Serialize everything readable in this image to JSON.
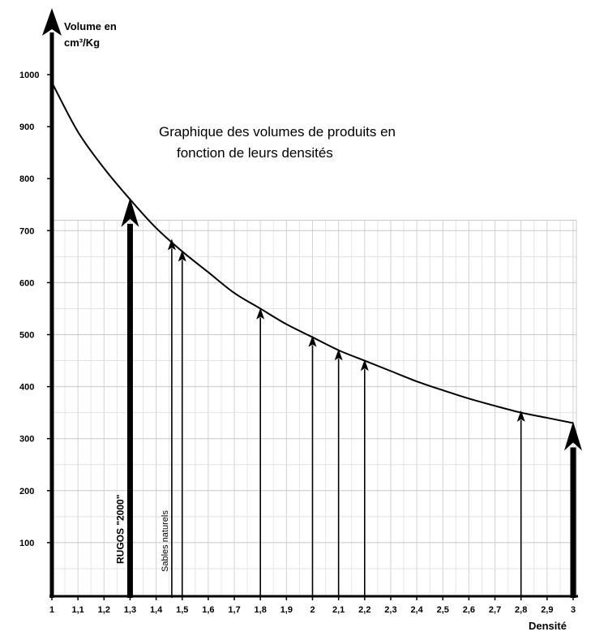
{
  "chart_data": {
    "type": "line",
    "title_line1": "Graphique des volumes de produits en",
    "title_line2": "fonction de leurs densités",
    "ylabel_line1": "Volume en",
    "ylabel_line2": "cm³/Kg",
    "xlabel": "Densité",
    "xlim": [
      1,
      3
    ],
    "ylim": [
      0,
      1000
    ],
    "x_tick_labels": [
      "1",
      "1,1",
      "1,2",
      "1,3",
      "1,4",
      "1,5",
      "1,6",
      "1,7",
      "1,8",
      "1,9",
      "2",
      "2,1",
      "2,2",
      "2,3",
      "2,4",
      "2,5",
      "2,6",
      "2,7",
      "2,8",
      "2,9",
      "3"
    ],
    "y_tick_labels": [
      "100",
      "200",
      "300",
      "400",
      "500",
      "600",
      "700",
      "800",
      "900",
      "1000"
    ],
    "y_tick_values": [
      100,
      200,
      300,
      400,
      500,
      600,
      700,
      800,
      900,
      1000
    ],
    "curve": {
      "x": [
        1,
        1.1,
        1.2,
        1.3,
        1.4,
        1.5,
        1.6,
        1.7,
        1.8,
        1.9,
        2,
        2.1,
        2.2,
        2.3,
        2.4,
        2.5,
        2.6,
        2.7,
        2.8,
        2.9,
        3
      ],
      "y": [
        985,
        890,
        820,
        760,
        705,
        660,
        620,
        580,
        550,
        520,
        495,
        470,
        450,
        430,
        410,
        393,
        377,
        363,
        350,
        340,
        330
      ]
    },
    "markers": [
      {
        "x": 1.3,
        "y": 760,
        "style": "bold",
        "label": "RUGOS \"2000\""
      },
      {
        "x": 1.46,
        "y": 678,
        "style": "thin",
        "label": "Sables naturels"
      },
      {
        "x": 1.5,
        "y": 656,
        "style": "thin",
        "label": ""
      },
      {
        "x": 1.8,
        "y": 545,
        "style": "thin",
        "label": ""
      },
      {
        "x": 2.0,
        "y": 492,
        "style": "thin",
        "label": ""
      },
      {
        "x": 2.1,
        "y": 466,
        "style": "thin",
        "label": ""
      },
      {
        "x": 2.2,
        "y": 446,
        "style": "thin",
        "label": ""
      },
      {
        "x": 2.8,
        "y": 348,
        "style": "thin",
        "label": ""
      },
      {
        "x": 3.0,
        "y": 330,
        "style": "bold",
        "label": ""
      }
    ]
  }
}
